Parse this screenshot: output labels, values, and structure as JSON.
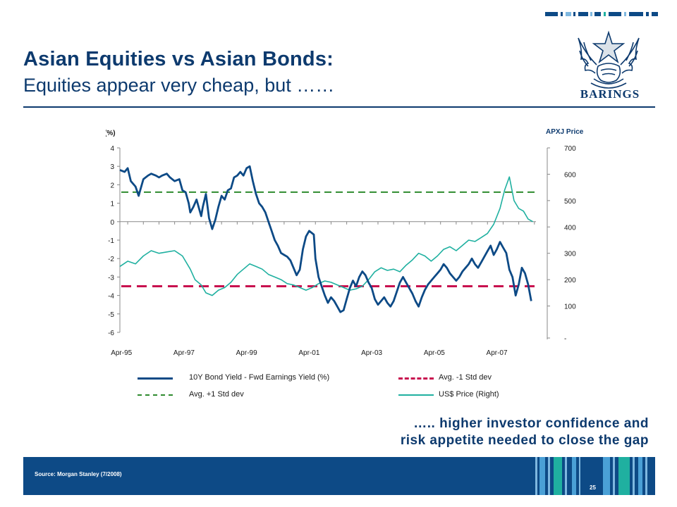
{
  "title": {
    "main": "Asian Equities vs Asian Bonds:",
    "sub": "Equities appear very cheap, but ……"
  },
  "logo": {
    "brand": "BARINGS"
  },
  "callout": {
    "line1": "….. higher investor confidence and",
    "line2": "risk appetite needed to close the gap"
  },
  "footer": {
    "source": "Source: Morgan Stanley  (7/2008)",
    "page": "25"
  },
  "colors": {
    "navy": "#0d3a6e",
    "bond_series": "#0d4a86",
    "price_series": "#1fb0a0",
    "avg_plus": "#2e8b2e",
    "avg_minus": "#c8104f"
  },
  "chart_data": {
    "type": "line",
    "left_axis_label": "(%)",
    "right_axis_label": "APXJ Price",
    "x_ticks": [
      "Apr-95",
      "Apr-97",
      "Apr-99",
      "Apr-01",
      "Apr-03",
      "Apr-05",
      "Apr-07"
    ],
    "x_range": [
      1995.25,
      2008.55
    ],
    "ylim_left": [
      -6,
      4
    ],
    "yticks_left": [
      "4",
      "3",
      "2",
      "1",
      "0",
      "-1",
      "-2",
      "-3",
      "-4",
      "-5",
      "-6"
    ],
    "ylim_right": [
      0,
      700
    ],
    "yticks_right": [
      "700",
      "600",
      "500",
      "400",
      "300",
      "200",
      "100",
      "-"
    ],
    "avg_plus_std": 1.6,
    "avg_minus_std": -3.5,
    "series": [
      {
        "name": "10Y Bond Yield - Fwd Earnings Yield (%)",
        "axis": "left",
        "x": [
          1995.25,
          1995.4,
          1995.5,
          1995.6,
          1995.75,
          1995.85,
          1995.9,
          1996.0,
          1996.15,
          1996.25,
          1996.4,
          1996.5,
          1996.6,
          1996.75,
          1996.85,
          1997.0,
          1997.15,
          1997.25,
          1997.35,
          1997.45,
          1997.5,
          1997.6,
          1997.7,
          1997.8,
          1997.85,
          1997.9,
          1998.0,
          1998.1,
          1998.2,
          1998.3,
          1998.4,
          1998.5,
          1998.6,
          1998.7,
          1998.8,
          1998.9,
          1999.0,
          1999.1,
          1999.2,
          1999.3,
          1999.4,
          1999.5,
          1999.6,
          1999.7,
          1999.8,
          1999.9,
          2000.0,
          2000.1,
          2000.2,
          2000.3,
          2000.4,
          2000.5,
          2000.6,
          2000.7,
          2000.8,
          2000.9,
          2001.0,
          2001.1,
          2001.2,
          2001.3,
          2001.45,
          2001.5,
          2001.6,
          2001.7,
          2001.8,
          2001.9,
          2002.0,
          2002.1,
          2002.2,
          2002.3,
          2002.4,
          2002.5,
          2002.6,
          2002.7,
          2002.8,
          2002.9,
          2003.0,
          2003.1,
          2003.2,
          2003.3,
          2003.4,
          2003.5,
          2003.6,
          2003.7,
          2003.8,
          2003.9,
          2004.0,
          2004.1,
          2004.2,
          2004.3,
          2004.4,
          2004.5,
          2004.6,
          2004.7,
          2004.8,
          2004.9,
          2005.0,
          2005.1,
          2005.2,
          2005.3,
          2005.4,
          2005.5,
          2005.6,
          2005.7,
          2005.8,
          2005.9,
          2006.0,
          2006.1,
          2006.2,
          2006.3,
          2006.4,
          2006.5,
          2006.6,
          2006.7,
          2006.8,
          2006.9,
          2007.0,
          2007.1,
          2007.2,
          2007.3,
          2007.4,
          2007.5,
          2007.6,
          2007.7,
          2007.8,
          2007.9,
          2008.0,
          2008.1,
          2008.2,
          2008.3,
          2008.4
        ],
        "values": [
          2.8,
          2.7,
          2.9,
          2.2,
          1.9,
          1.4,
          1.7,
          2.3,
          2.5,
          2.6,
          2.5,
          2.4,
          2.5,
          2.6,
          2.4,
          2.2,
          2.3,
          1.7,
          1.6,
          1.0,
          0.5,
          0.8,
          1.2,
          0.6,
          0.3,
          0.8,
          1.5,
          0.2,
          -0.4,
          0.1,
          0.8,
          1.4,
          1.2,
          1.7,
          1.8,
          2.4,
          2.5,
          2.7,
          2.5,
          2.9,
          3.0,
          2.2,
          1.5,
          1.0,
          0.8,
          0.5,
          0.0,
          -0.5,
          -1.0,
          -1.3,
          -1.7,
          -1.8,
          -1.9,
          -2.1,
          -2.5,
          -2.9,
          -2.6,
          -1.5,
          -0.8,
          -0.5,
          -0.7,
          -2.0,
          -3.0,
          -3.5,
          -4.0,
          -4.4,
          -4.1,
          -4.3,
          -4.6,
          -4.9,
          -4.8,
          -4.2,
          -3.6,
          -3.2,
          -3.5,
          -3.0,
          -2.7,
          -2.9,
          -3.3,
          -3.6,
          -4.2,
          -4.5,
          -4.3,
          -4.1,
          -4.4,
          -4.6,
          -4.3,
          -3.8,
          -3.3,
          -3.0,
          -3.3,
          -3.6,
          -3.9,
          -4.3,
          -4.6,
          -4.1,
          -3.7,
          -3.4,
          -3.2,
          -3.0,
          -2.8,
          -2.6,
          -2.3,
          -2.5,
          -2.8,
          -3.0,
          -3.2,
          -3.0,
          -2.7,
          -2.5,
          -2.3,
          -2.0,
          -2.3,
          -2.5,
          -2.2,
          -1.9,
          -1.6,
          -1.3,
          -1.8,
          -1.5,
          -1.1,
          -1.4,
          -1.7,
          -2.6,
          -3.0,
          -4.0,
          -3.4,
          -2.5,
          -2.8,
          -3.4,
          -4.3
        ]
      },
      {
        "name": "US$ Price (Right)",
        "axis": "right",
        "x": [
          1995.25,
          1995.5,
          1995.75,
          1996.0,
          1996.25,
          1996.5,
          1996.75,
          1997.0,
          1997.25,
          1997.5,
          1997.65,
          1997.75,
          1997.85,
          1998.0,
          1998.2,
          1998.4,
          1998.6,
          1998.8,
          1999.0,
          1999.2,
          1999.4,
          1999.6,
          1999.8,
          2000.0,
          2000.2,
          2000.4,
          2000.6,
          2000.8,
          2001.0,
          2001.2,
          2001.4,
          2001.6,
          2001.8,
          2002.0,
          2002.2,
          2002.4,
          2002.6,
          2002.8,
          2003.0,
          2003.2,
          2003.4,
          2003.6,
          2003.8,
          2004.0,
          2004.2,
          2004.4,
          2004.6,
          2004.8,
          2005.0,
          2005.2,
          2005.4,
          2005.6,
          2005.8,
          2006.0,
          2006.2,
          2006.4,
          2006.6,
          2006.8,
          2007.0,
          2007.2,
          2007.4,
          2007.55,
          2007.7,
          2007.85,
          2008.0,
          2008.15,
          2008.3,
          2008.45
        ],
        "values": [
          250,
          270,
          260,
          290,
          310,
          300,
          305,
          310,
          290,
          240,
          200,
          190,
          180,
          150,
          140,
          160,
          170,
          190,
          220,
          240,
          260,
          250,
          240,
          220,
          210,
          200,
          185,
          180,
          170,
          160,
          170,
          185,
          195,
          190,
          180,
          170,
          160,
          165,
          175,
          200,
          230,
          245,
          235,
          240,
          230,
          255,
          275,
          300,
          290,
          270,
          290,
          315,
          325,
          310,
          330,
          350,
          345,
          360,
          375,
          410,
          470,
          540,
          590,
          500,
          470,
          460,
          430,
          420
        ]
      }
    ]
  }
}
